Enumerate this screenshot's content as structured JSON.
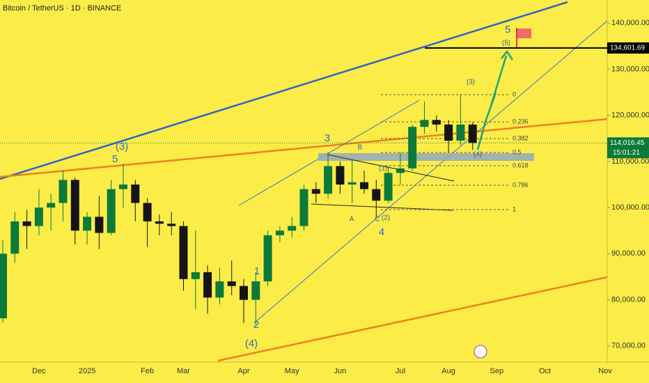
{
  "chart_data": {
    "type": "candlestick",
    "title": "Bitcoin / TetherUS · 1D · BINANCE",
    "categories": [
      null,
      null,
      null,
      "Dec",
      null,
      null,
      null,
      "2025",
      null,
      null,
      null,
      null,
      "Feb",
      null,
      null,
      "Mar",
      null,
      null,
      null,
      null,
      "Apr",
      null,
      null,
      null,
      "May",
      null,
      null,
      null,
      "Jun",
      null,
      null,
      null,
      null,
      "Jul",
      null,
      null,
      null,
      "Aug",
      null,
      null,
      null,
      "Sep",
      null,
      null,
      null,
      "Oct",
      null,
      null,
      null,
      null,
      "Nov",
      null
    ],
    "open": [
      76000,
      90000,
      97000,
      96000,
      100000,
      101000,
      106000,
      95000,
      98000,
      94500,
      104000,
      105000,
      101000,
      97000,
      96500,
      96000,
      84500,
      86000,
      80500,
      84000,
      83000,
      80000,
      84000,
      94000,
      95000,
      96000,
      104000,
      103000,
      109000,
      105000,
      105500,
      104000,
      101500,
      107500,
      108500,
      117500,
      119000,
      118000,
      114500,
      118000,
      null,
      null,
      null,
      null,
      null,
      null,
      null,
      null,
      null,
      null,
      null,
      null
    ],
    "high": [
      93000,
      99000,
      99500,
      104000,
      103000,
      108000,
      106500,
      99000,
      102500,
      106000,
      109500,
      106000,
      102000,
      98500,
      99000,
      97000,
      95000,
      87500,
      87000,
      88500,
      84500,
      86000,
      95000,
      96000,
      98000,
      105000,
      105500,
      112000,
      110000,
      110500,
      108000,
      106000,
      109000,
      112000,
      118000,
      123000,
      120000,
      119000,
      124500,
      118500,
      null,
      null,
      null,
      null,
      null,
      null,
      null,
      null,
      null,
      null,
      null,
      null
    ],
    "low": [
      75000,
      88000,
      91000,
      94000,
      95000,
      97000,
      92000,
      92000,
      91000,
      94000,
      100000,
      97000,
      91500,
      94000,
      94000,
      82000,
      78000,
      77000,
      79000,
      81000,
      75000,
      74500,
      83000,
      92500,
      93500,
      95000,
      101000,
      102000,
      103000,
      101000,
      103000,
      98000,
      101000,
      105000,
      108000,
      116000,
      116500,
      112000,
      113500,
      112500,
      null,
      null,
      null,
      null,
      null,
      null,
      null,
      null,
      null,
      null,
      null,
      null
    ],
    "close": [
      90000,
      97000,
      96000,
      100000,
      101000,
      106000,
      95000,
      98000,
      94500,
      104000,
      105000,
      101000,
      97000,
      96500,
      96000,
      84500,
      86000,
      80500,
      84000,
      83000,
      80000,
      84000,
      94000,
      95000,
      96000,
      104000,
      103000,
      109000,
      105000,
      105500,
      104000,
      101500,
      107500,
      108500,
      117500,
      119000,
      118000,
      114500,
      118000,
      114000,
      null,
      null,
      null,
      null,
      null,
      null,
      null,
      null,
      null,
      null,
      null,
      null
    ],
    "up_color": "#0b7a3b",
    "down_color": "#151515",
    "ylim": [
      66500,
      145000
    ],
    "yticks": [
      {
        "value": 70000,
        "label": "70,000.00"
      },
      {
        "value": 80000,
        "label": "80,000.00"
      },
      {
        "value": 90000,
        "label": "90,000.00"
      },
      {
        "value": 100000,
        "label": "100,000.00"
      },
      {
        "value": 110000,
        "label": "110,000.00"
      },
      {
        "value": 120000,
        "label": "120,000.00"
      },
      {
        "value": 130000,
        "label": "130,000.00"
      },
      {
        "value": 140000,
        "label": "140,000.00"
      }
    ],
    "price_lines": [
      {
        "value": 134601.69,
        "label": "134,601.69",
        "color": "#000000"
      },
      {
        "value": 114016.45,
        "label": "114,016.45",
        "color": "#0b7a3b"
      }
    ],
    "timer": "15:01:21",
    "annotations": [
      "(3)",
      "5",
      "5",
      "(5)",
      "(3)",
      "3",
      "B",
      "(1)",
      "A",
      "C",
      "(2)",
      "4",
      "1",
      "2",
      "(4)",
      "(4)"
    ],
    "fib_levels": [
      "0",
      "0.236",
      "0.382",
      "0.5",
      "0.618",
      "0.786",
      "1"
    ]
  }
}
